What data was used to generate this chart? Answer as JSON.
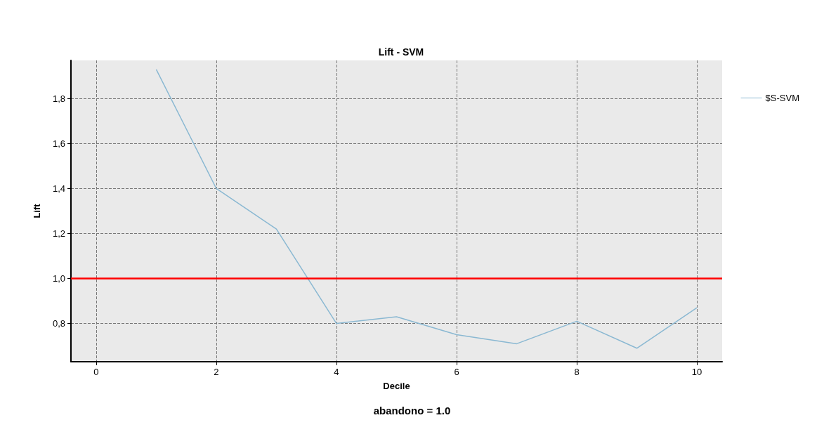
{
  "chart_data": {
    "type": "line",
    "title": "Lift - SVM",
    "xlabel": "Decile",
    "ylabel": "Lift",
    "x": [
      1,
      2,
      3,
      4,
      5,
      6,
      7,
      8,
      9,
      10
    ],
    "series": [
      {
        "name": "$S-SVM",
        "color": "#8ab8d2",
        "values": [
          1.93,
          1.4,
          1.22,
          0.8,
          0.83,
          0.75,
          0.71,
          0.81,
          0.69,
          0.87
        ]
      }
    ],
    "xlim": [
      -0.42,
      10.42
    ],
    "xticks": [
      0,
      2,
      4,
      6,
      8,
      10
    ],
    "ylim": [
      0.63,
      1.97
    ],
    "yticks": [
      {
        "value": 0.8,
        "label": "0,8"
      },
      {
        "value": 1.0,
        "label": "1,0"
      },
      {
        "value": 1.2,
        "label": "1,2"
      },
      {
        "value": 1.4,
        "label": "1,4"
      },
      {
        "value": 1.6,
        "label": "1,6"
      },
      {
        "value": 1.8,
        "label": "1,8"
      }
    ],
    "ref_lines": [
      {
        "axis": "y",
        "value": 1.0,
        "color": "#ff0000"
      }
    ],
    "annotations": [
      "abandono = 1.0"
    ],
    "grid": true,
    "legend": "top right",
    "marker": "none",
    "line_style": "solid"
  }
}
